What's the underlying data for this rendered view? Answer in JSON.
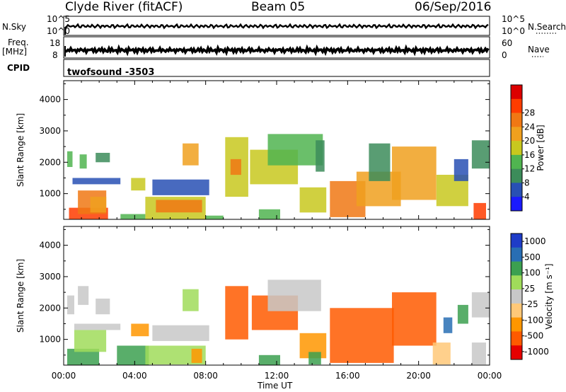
{
  "header": {
    "station": "Clyde River (fitACF)",
    "beam": "Beam 05",
    "date": "06/Sep/2016"
  },
  "strips": {
    "nsky_label": "N.Sky",
    "nsearch_label": "N.Search",
    "nsky_ticks": [
      "10^5",
      "10^0"
    ],
    "nsearch_ticks": [
      "10^5",
      "10^0"
    ],
    "freq_label_1": "Freq.",
    "freq_label_2": "[MHz]",
    "freq_ticks": [
      "18",
      "8"
    ],
    "nave_label": "Nave",
    "nave_ticks": [
      "60",
      "0"
    ],
    "cpid_label": "CPID",
    "cpid_value": "twofsound  -3503"
  },
  "colors": {
    "power": [
      "#1a1aff",
      "#2850b4",
      "#3c8c5a",
      "#50b450",
      "#c8c81e",
      "#f0a01e",
      "#f07814",
      "#ff3c00",
      "#dc0000"
    ],
    "velocity": [
      "#e60000",
      "#ff5a00",
      "#ff9600",
      "#ffc878",
      "#c8c8c8",
      "#a0dc5a",
      "#3ca050",
      "#286eb4",
      "#1e3cc8"
    ]
  },
  "chart_data": [
    {
      "type": "heatmap",
      "name": "power-panel",
      "xlabel": "",
      "ylabel": "Slant Range [km]",
      "x_range_hours": [
        0,
        24
      ],
      "ylim": [
        180,
        4600
      ],
      "y_ticks": [
        1000,
        2000,
        3000,
        4000
      ],
      "colorbar_label": "Power [dB]",
      "colorbar_ticks": [
        "4",
        "8",
        "12",
        "16",
        "20",
        "24",
        "28"
      ],
      "patches": [
        {
          "t": [
            0.3,
            2.5
          ],
          "r": [
            180,
            550
          ],
          "v": 7
        },
        {
          "t": [
            0.8,
            2.4
          ],
          "r": [
            350,
            1100
          ],
          "v": 6
        },
        {
          "t": [
            1.5,
            2.4
          ],
          "r": [
            400,
            900
          ],
          "v": 5
        },
        {
          "t": [
            0.2,
            0.5
          ],
          "r": [
            1850,
            2350
          ],
          "v": 3
        },
        {
          "t": [
            0.9,
            1.3
          ],
          "r": [
            1800,
            2250
          ],
          "v": 3
        },
        {
          "t": [
            1.8,
            2.6
          ],
          "r": [
            2000,
            2300
          ],
          "v": 2
        },
        {
          "t": [
            0.5,
            3.2
          ],
          "r": [
            1300,
            1500
          ],
          "v": 1
        },
        {
          "t": [
            3.2,
            4.6
          ],
          "r": [
            180,
            350
          ],
          "v": 3
        },
        {
          "t": [
            3.8,
            4.6
          ],
          "r": [
            1100,
            1500
          ],
          "v": 4
        },
        {
          "t": [
            4.6,
            8.0
          ],
          "r": [
            180,
            900
          ],
          "v": 4
        },
        {
          "t": [
            5.2,
            7.8
          ],
          "r": [
            400,
            800
          ],
          "v": 6
        },
        {
          "t": [
            5.0,
            8.2
          ],
          "r": [
            950,
            1450
          ],
          "v": 1
        },
        {
          "t": [
            6.7,
            7.6
          ],
          "r": [
            1900,
            2600
          ],
          "v": 5
        },
        {
          "t": [
            8.0,
            9.0
          ],
          "r": [
            180,
            300
          ],
          "v": 3
        },
        {
          "t": [
            9.1,
            10.4
          ],
          "r": [
            900,
            2800
          ],
          "v": 4
        },
        {
          "t": [
            9.4,
            10.0
          ],
          "r": [
            1600,
            2100
          ],
          "v": 6
        },
        {
          "t": [
            10.5,
            13.2
          ],
          "r": [
            1300,
            2400
          ],
          "v": 4
        },
        {
          "t": [
            11.5,
            14.6
          ],
          "r": [
            1900,
            2900
          ],
          "v": 3
        },
        {
          "t": [
            11.0,
            12.2
          ],
          "r": [
            180,
            500
          ],
          "v": 3
        },
        {
          "t": [
            13.3,
            14.8
          ],
          "r": [
            400,
            1200
          ],
          "v": 4
        },
        {
          "t": [
            14.2,
            14.7
          ],
          "r": [
            1700,
            2700
          ],
          "v": 2
        },
        {
          "t": [
            15.0,
            17.0
          ],
          "r": [
            250,
            1400
          ],
          "v": 6
        },
        {
          "t": [
            16.5,
            19.0
          ],
          "r": [
            600,
            1700
          ],
          "v": 5
        },
        {
          "t": [
            18.5,
            21.0
          ],
          "r": [
            800,
            2500
          ],
          "v": 5
        },
        {
          "t": [
            17.2,
            18.4
          ],
          "r": [
            1400,
            2600
          ],
          "v": 2
        },
        {
          "t": [
            21.0,
            22.8
          ],
          "r": [
            600,
            1600
          ],
          "v": 4
        },
        {
          "t": [
            22.0,
            22.8
          ],
          "r": [
            1400,
            2100
          ],
          "v": 1
        },
        {
          "t": [
            23.0,
            24.0
          ],
          "r": [
            1800,
            2700
          ],
          "v": 2
        },
        {
          "t": [
            23.1,
            23.8
          ],
          "r": [
            180,
            700
          ],
          "v": 7
        }
      ]
    },
    {
      "type": "heatmap",
      "name": "velocity-panel",
      "xlabel": "Time UT",
      "ylabel": "Slant Range [km]",
      "x_range_hours": [
        0,
        24
      ],
      "x_ticks": [
        "00:00",
        "04:00",
        "08:00",
        "12:00",
        "16:00",
        "20:00",
        "00:00"
      ],
      "ylim": [
        180,
        4600
      ],
      "y_ticks": [
        1000,
        2000,
        3000,
        4000
      ],
      "colorbar_label": "Velocity [m s⁻¹]",
      "colorbar_ticks": [
        "1000",
        "500",
        "100",
        "25",
        "-25",
        "-100",
        "-500",
        "-1000"
      ],
      "patches": [
        {
          "t": [
            0.2,
            2.0
          ],
          "r": [
            180,
            700
          ],
          "v": 6
        },
        {
          "t": [
            0.6,
            2.4
          ],
          "r": [
            600,
            1300
          ],
          "v": 5
        },
        {
          "t": [
            0.2,
            0.6
          ],
          "r": [
            1800,
            2400
          ],
          "v": 4
        },
        {
          "t": [
            0.8,
            1.4
          ],
          "r": [
            2100,
            2700
          ],
          "v": 4
        },
        {
          "t": [
            1.8,
            2.6
          ],
          "r": [
            1800,
            2300
          ],
          "v": 4
        },
        {
          "t": [
            0.6,
            3.2
          ],
          "r": [
            1300,
            1500
          ],
          "v": 4
        },
        {
          "t": [
            3.0,
            4.8
          ],
          "r": [
            180,
            800
          ],
          "v": 6
        },
        {
          "t": [
            3.8,
            4.8
          ],
          "r": [
            1100,
            1500
          ],
          "v": 2
        },
        {
          "t": [
            4.6,
            8.0
          ],
          "r": [
            200,
            800
          ],
          "v": 5
        },
        {
          "t": [
            5.0,
            8.2
          ],
          "r": [
            950,
            1450
          ],
          "v": 4
        },
        {
          "t": [
            7.2,
            7.8
          ],
          "r": [
            250,
            700
          ],
          "v": 2
        },
        {
          "t": [
            6.7,
            7.6
          ],
          "r": [
            1900,
            2600
          ],
          "v": 5
        },
        {
          "t": [
            9.1,
            10.4
          ],
          "r": [
            1000,
            2700
          ],
          "v": 1
        },
        {
          "t": [
            10.6,
            13.2
          ],
          "r": [
            1300,
            2400
          ],
          "v": 1
        },
        {
          "t": [
            11.5,
            14.5
          ],
          "r": [
            1900,
            2900
          ],
          "v": 4
        },
        {
          "t": [
            11.0,
            12.2
          ],
          "r": [
            180,
            500
          ],
          "v": 6
        },
        {
          "t": [
            13.3,
            14.8
          ],
          "r": [
            400,
            1200
          ],
          "v": 2
        },
        {
          "t": [
            13.8,
            14.5
          ],
          "r": [
            200,
            600
          ],
          "v": 6
        },
        {
          "t": [
            15.0,
            18.6
          ],
          "r": [
            250,
            2000
          ],
          "v": 1
        },
        {
          "t": [
            18.5,
            21.0
          ],
          "r": [
            800,
            2500
          ],
          "v": 1
        },
        {
          "t": [
            20.8,
            21.8
          ],
          "r": [
            200,
            900
          ],
          "v": 3
        },
        {
          "t": [
            21.4,
            21.9
          ],
          "r": [
            1200,
            1700
          ],
          "v": 7
        },
        {
          "t": [
            22.2,
            22.8
          ],
          "r": [
            1500,
            2100
          ],
          "v": 6
        },
        {
          "t": [
            23.0,
            24.0
          ],
          "r": [
            1700,
            2500
          ],
          "v": 4
        },
        {
          "t": [
            23.0,
            23.8
          ],
          "r": [
            200,
            900
          ],
          "v": 4
        }
      ]
    }
  ]
}
